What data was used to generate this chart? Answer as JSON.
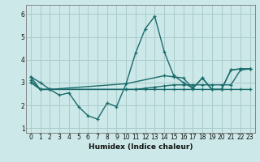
{
  "xlabel": "Humidex (Indice chaleur)",
  "bg_color": "#cce8e8",
  "grid_color": "#aacccc",
  "line_color": "#1a6b6b",
  "xlim": [
    -0.5,
    23.5
  ],
  "ylim": [
    0.8,
    6.4
  ],
  "xticks": [
    0,
    1,
    2,
    3,
    4,
    5,
    6,
    7,
    8,
    9,
    10,
    11,
    12,
    13,
    14,
    15,
    16,
    17,
    18,
    19,
    20,
    21,
    22,
    23
  ],
  "yticks": [
    1,
    2,
    3,
    4,
    5,
    6
  ],
  "line1_x": [
    0,
    1,
    2,
    3,
    4,
    5,
    6,
    7,
    8,
    9,
    10,
    11,
    12,
    13,
    14,
    15,
    16,
    17,
    18,
    19,
    20,
    21,
    22,
    23
  ],
  "line1_y": [
    3.25,
    3.0,
    2.7,
    2.45,
    2.55,
    1.95,
    1.55,
    1.4,
    2.1,
    1.95,
    2.95,
    4.3,
    5.35,
    5.9,
    4.35,
    3.3,
    3.0,
    2.75,
    3.2,
    2.7,
    2.7,
    3.55,
    3.6,
    3.6
  ],
  "line2_x": [
    0,
    1,
    2,
    10,
    11,
    12,
    13,
    14,
    15,
    16,
    17,
    18,
    19,
    20,
    21,
    22,
    23
  ],
  "line2_y": [
    3.25,
    2.7,
    2.7,
    2.7,
    2.7,
    2.75,
    2.8,
    2.85,
    2.9,
    2.9,
    2.9,
    2.9,
    2.9,
    2.9,
    2.9,
    3.55,
    3.6
  ],
  "line3_x": [
    0,
    1,
    2,
    10,
    11,
    12,
    13,
    14,
    15,
    16,
    17,
    18,
    19,
    20,
    21,
    22,
    23
  ],
  "line3_y": [
    3.1,
    2.7,
    2.7,
    2.7,
    2.7,
    2.7,
    2.7,
    2.7,
    2.7,
    2.7,
    2.7,
    2.7,
    2.7,
    2.7,
    2.7,
    2.7,
    2.7
  ],
  "line4_x": [
    0,
    1,
    2,
    10,
    14,
    15,
    16,
    17,
    18,
    19,
    20,
    21,
    22,
    23
  ],
  "line4_y": [
    3.0,
    2.7,
    2.7,
    2.95,
    3.3,
    3.25,
    3.2,
    2.75,
    3.2,
    2.7,
    2.7,
    3.55,
    3.6,
    3.6
  ]
}
